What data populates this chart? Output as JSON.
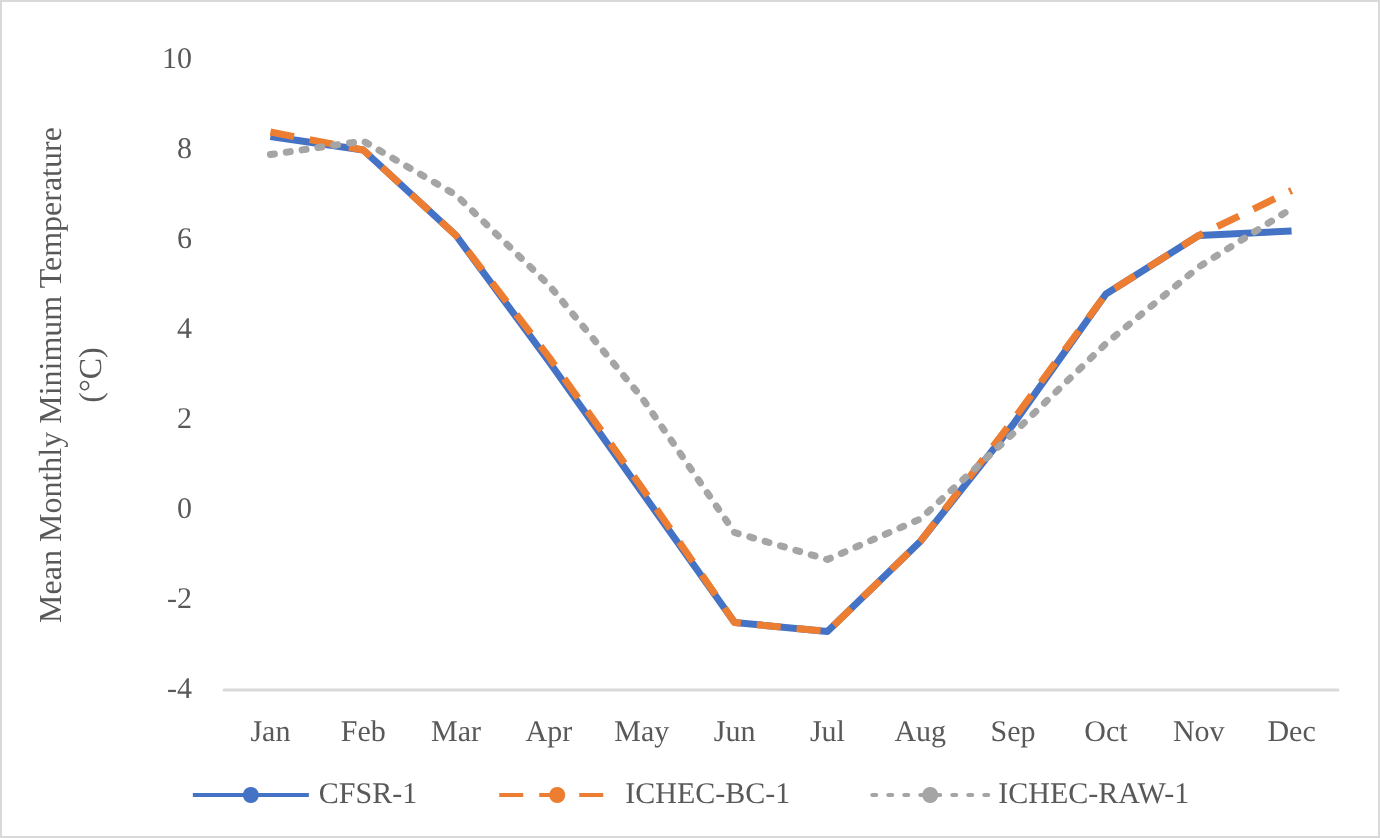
{
  "chart_data": {
    "type": "line",
    "ylabel": "Mean Monthly Minimum Temperature\n(°C)",
    "categories": [
      "Jan",
      "Feb",
      "Mar",
      "Apr",
      "May",
      "Jun",
      "Jul",
      "Aug",
      "Sep",
      "Oct",
      "Nov",
      "Dec"
    ],
    "series": [
      {
        "name": "CFSR-1",
        "color": "#4472c4",
        "line_style": "solid",
        "values": [
          8.3,
          8.0,
          6.1,
          3.3,
          0.4,
          -2.5,
          -2.7,
          -0.7,
          1.9,
          4.8,
          6.1,
          6.2
        ]
      },
      {
        "name": "ICHEC-BC-1",
        "color": "#ed7d31",
        "line_style": "dashed",
        "values": [
          8.4,
          8.0,
          6.1,
          3.4,
          0.5,
          -2.5,
          -2.7,
          -0.7,
          2.0,
          4.8,
          6.1,
          7.1
        ]
      },
      {
        "name": "ICHEC-RAW-1",
        "color": "#a5a5a5",
        "line_style": "dotted",
        "values": [
          7.9,
          8.2,
          7.0,
          5.0,
          2.5,
          -0.5,
          -1.1,
          -0.2,
          1.7,
          3.7,
          5.4,
          6.7
        ]
      }
    ],
    "ylim": [
      -4,
      10
    ],
    "yticks": [
      -4,
      -2,
      0,
      2,
      4,
      6,
      8,
      10
    ],
    "grid": false,
    "legend": "bottom",
    "marker": "none"
  }
}
